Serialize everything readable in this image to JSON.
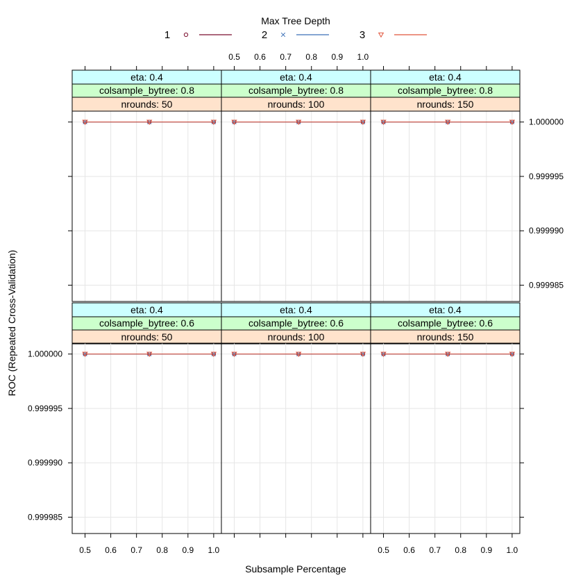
{
  "chart_data": {
    "type": "line",
    "xlabel": "Subsample Percentage",
    "ylabel": "ROC (Repeated Cross-Validation)",
    "xlim": [
      0.45,
      1.03
    ],
    "ylim": [
      0.9999835,
      1.000001
    ],
    "x_ticks": [
      0.5,
      0.6,
      0.7,
      0.8,
      0.9,
      1.0
    ],
    "x_tick_labels": [
      "0.5",
      "0.6",
      "0.7",
      "0.8",
      "0.9",
      "1.0"
    ],
    "y_ticks": [
      1.0,
      0.999995,
      0.99999,
      0.999985
    ],
    "y_tick_labels": [
      "1.000000",
      "0.999995",
      "0.999990",
      "0.999985"
    ],
    "grid": true,
    "legend": {
      "title": "Max Tree Depth",
      "placement": "top",
      "entries": [
        {
          "label": "1",
          "color": "#7b0f2f",
          "marker": "circle"
        },
        {
          "label": "2",
          "color": "#3b6fb6",
          "marker": "cross"
        },
        {
          "label": "3",
          "color": "#e0533a",
          "marker": "triangle-down"
        }
      ]
    },
    "strip_colors": [
      "#ccffff",
      "#ccffcc",
      "#ffe3cc"
    ],
    "panels": [
      {
        "strips": [
          "eta: 0.4",
          "colsample_bytree: 0.8",
          "nrounds:  50"
        ],
        "series": [
          {
            "name": "1",
            "x": [
              0.5,
              0.75,
              1.0
            ],
            "y": [
              1.0,
              1.0,
              1.0
            ]
          },
          {
            "name": "2",
            "x": [
              0.5,
              0.75,
              1.0
            ],
            "y": [
              1.0,
              1.0,
              1.0
            ]
          },
          {
            "name": "3",
            "x": [
              0.5,
              0.75,
              1.0
            ],
            "y": [
              1.0,
              1.0,
              1.0
            ]
          }
        ]
      },
      {
        "strips": [
          "eta: 0.4",
          "colsample_bytree: 0.8",
          "nrounds: 100"
        ],
        "series": [
          {
            "name": "1",
            "x": [
              0.5,
              0.75,
              1.0
            ],
            "y": [
              1.0,
              1.0,
              1.0
            ]
          },
          {
            "name": "2",
            "x": [
              0.5,
              0.75,
              1.0
            ],
            "y": [
              1.0,
              1.0,
              1.0
            ]
          },
          {
            "name": "3",
            "x": [
              0.5,
              0.75,
              1.0
            ],
            "y": [
              1.0,
              1.0,
              1.0
            ]
          }
        ]
      },
      {
        "strips": [
          "eta: 0.4",
          "colsample_bytree: 0.8",
          "nrounds: 150"
        ],
        "series": [
          {
            "name": "1",
            "x": [
              0.5,
              0.75,
              1.0
            ],
            "y": [
              1.0,
              1.0,
              1.0
            ]
          },
          {
            "name": "2",
            "x": [
              0.5,
              0.75,
              1.0
            ],
            "y": [
              1.0,
              1.0,
              1.0
            ]
          },
          {
            "name": "3",
            "x": [
              0.5,
              0.75,
              1.0
            ],
            "y": [
              1.0,
              1.0,
              1.0
            ]
          }
        ]
      },
      {
        "strips": [
          "eta: 0.4",
          "colsample_bytree: 0.6",
          "nrounds:  50"
        ],
        "series": [
          {
            "name": "1",
            "x": [
              0.5,
              0.75,
              1.0
            ],
            "y": [
              1.0,
              1.0,
              1.0
            ]
          },
          {
            "name": "2",
            "x": [
              0.5,
              0.75,
              1.0
            ],
            "y": [
              1.0,
              1.0,
              1.0
            ]
          },
          {
            "name": "3",
            "x": [
              0.5,
              0.75,
              1.0
            ],
            "y": [
              1.0,
              1.0,
              1.0
            ]
          }
        ]
      },
      {
        "strips": [
          "eta: 0.4",
          "colsample_bytree: 0.6",
          "nrounds: 100"
        ],
        "series": [
          {
            "name": "1",
            "x": [
              0.5,
              0.75,
              1.0
            ],
            "y": [
              1.0,
              1.0,
              1.0
            ]
          },
          {
            "name": "2",
            "x": [
              0.5,
              0.75,
              1.0
            ],
            "y": [
              1.0,
              1.0,
              1.0
            ]
          },
          {
            "name": "3",
            "x": [
              0.5,
              0.75,
              1.0
            ],
            "y": [
              1.0,
              1.0,
              1.0
            ]
          }
        ]
      },
      {
        "strips": [
          "eta: 0.4",
          "colsample_bytree: 0.6",
          "nrounds: 150"
        ],
        "series": [
          {
            "name": "1",
            "x": [
              0.5,
              0.75,
              1.0
            ],
            "y": [
              1.0,
              1.0,
              1.0
            ]
          },
          {
            "name": "2",
            "x": [
              0.5,
              0.75,
              1.0
            ],
            "y": [
              1.0,
              1.0,
              1.0
            ]
          },
          {
            "name": "3",
            "x": [
              0.5,
              0.75,
              1.0
            ],
            "y": [
              1.0,
              1.0,
              1.0
            ]
          }
        ]
      }
    ]
  }
}
